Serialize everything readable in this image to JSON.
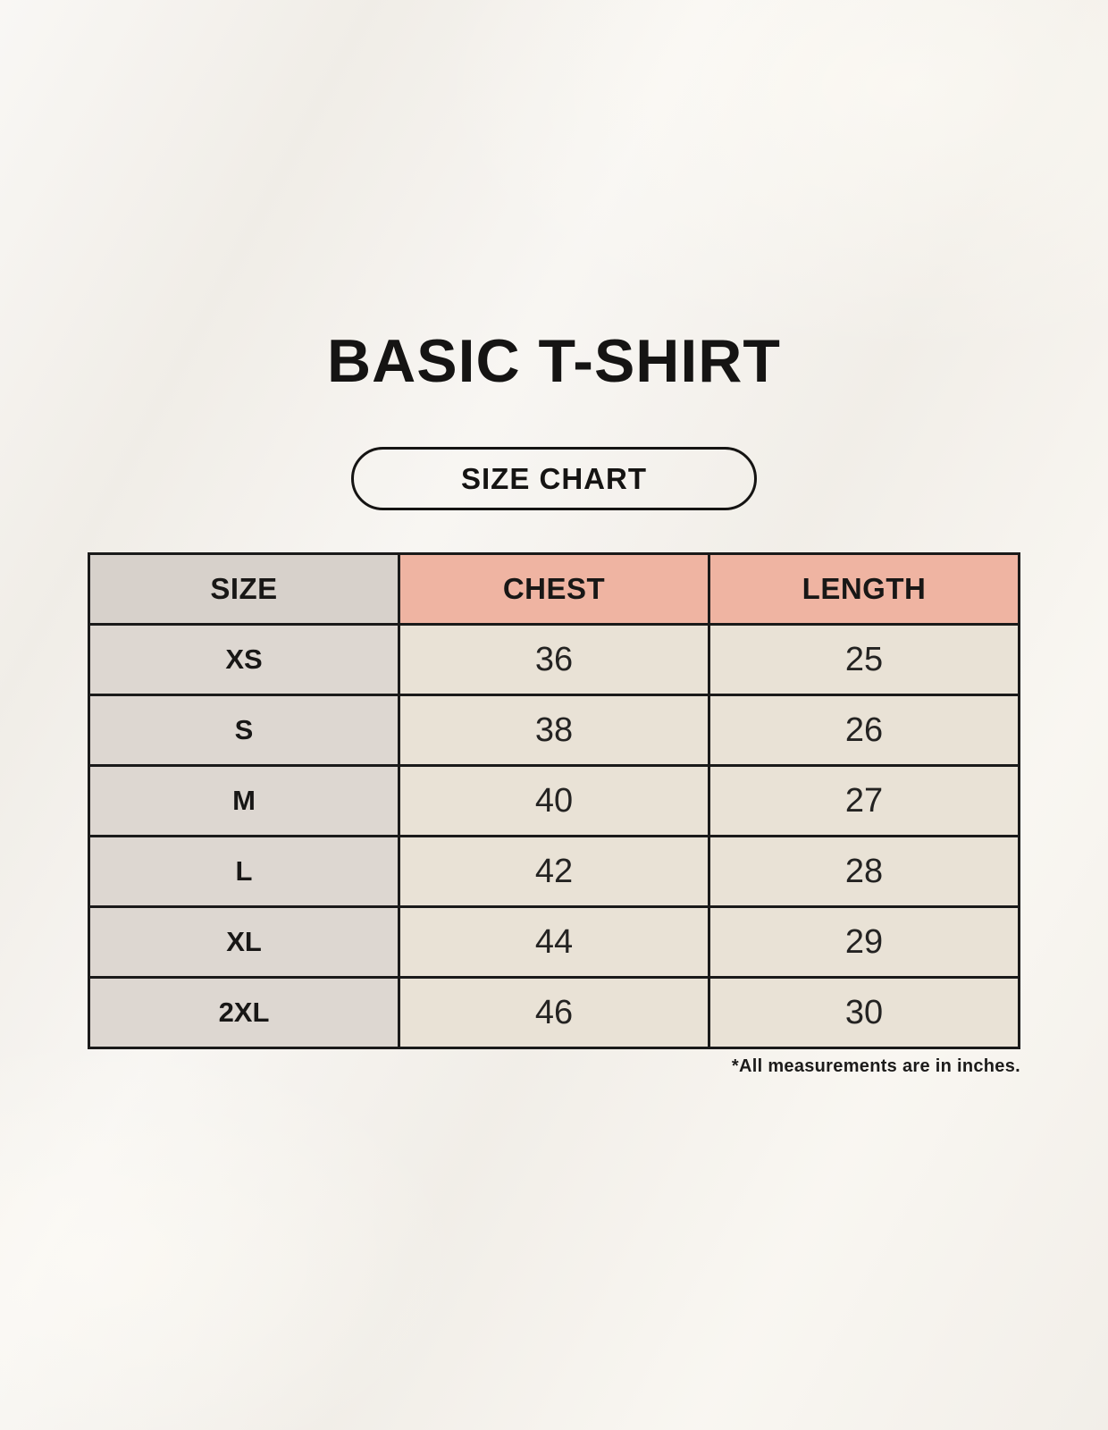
{
  "page": {
    "title": "BASIC T-SHIRT",
    "size_chart_button_label": "SIZE CHART",
    "footnote": "*All measurements are in inches."
  },
  "table": {
    "columns": [
      "SIZE",
      "CHEST",
      "LENGTH"
    ],
    "rows": [
      {
        "size": "XS",
        "chest": "36",
        "length": "25"
      },
      {
        "size": "S",
        "chest": "38",
        "length": "26"
      },
      {
        "size": "M",
        "chest": "40",
        "length": "27"
      },
      {
        "size": "L",
        "chest": "42",
        "length": "28"
      },
      {
        "size": "XL",
        "chest": "44",
        "length": "29"
      },
      {
        "size": "2XL",
        "chest": "46",
        "length": "30"
      }
    ]
  },
  "colors": {
    "background": "#f4f1ec",
    "header_size_bg": "#d7d1cb",
    "header_measurement_bg": "#efb4a2",
    "body_size_bg": "#ddd7d1",
    "body_data_bg": "#e9e2d6",
    "table_border": "#1a1a1a",
    "text": "#1c1b1a"
  }
}
